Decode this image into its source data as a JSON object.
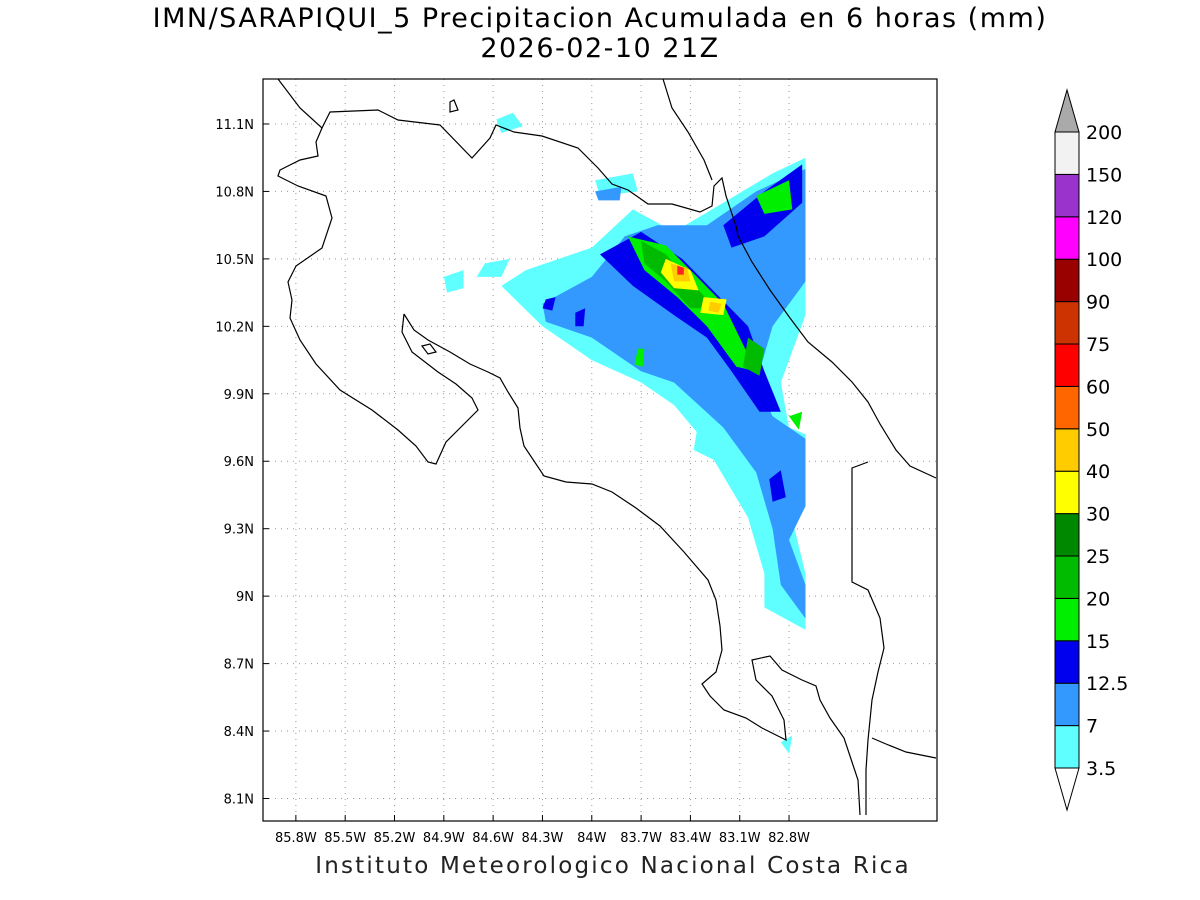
{
  "header": {
    "title_line1": "IMN/SARAPIQUI_5 Precipitacion Acumulada en 6 horas (mm)",
    "title_line2": "2026-02-10 21Z"
  },
  "footer": {
    "credit": "Instituto Meteorologico Nacional Costa Rica"
  },
  "map": {
    "lon_range": [
      -86.0,
      -81.9
    ],
    "lat_range": [
      8.0,
      11.3
    ],
    "x_ticks": [
      {
        "lon": -85.8,
        "label": "85.8W"
      },
      {
        "lon": -85.5,
        "label": "85.5W"
      },
      {
        "lon": -85.2,
        "label": "85.2W"
      },
      {
        "lon": -84.9,
        "label": "84.9W"
      },
      {
        "lon": -84.6,
        "label": "84.6W"
      },
      {
        "lon": -84.3,
        "label": "84.3W"
      },
      {
        "lon": -84.0,
        "label": "84W"
      },
      {
        "lon": -83.7,
        "label": "83.7W"
      },
      {
        "lon": -83.4,
        "label": "83.4W"
      },
      {
        "lon": -83.1,
        "label": "83.1W"
      },
      {
        "lon": -82.8,
        "label": "82.8W"
      }
    ],
    "y_ticks": [
      {
        "lat": 11.1,
        "label": "11.1N"
      },
      {
        "lat": 10.8,
        "label": "10.8N"
      },
      {
        "lat": 10.5,
        "label": "10.5N"
      },
      {
        "lat": 10.2,
        "label": "10.2N"
      },
      {
        "lat": 9.9,
        "label": "9.9N"
      },
      {
        "lat": 9.6,
        "label": "9.6N"
      },
      {
        "lat": 9.3,
        "label": "9.3N"
      },
      {
        "lat": 9.0,
        "label": "9N"
      },
      {
        "lat": 8.7,
        "label": "8.7N"
      },
      {
        "lat": 8.4,
        "label": "8.4N"
      },
      {
        "lat": 8.1,
        "label": "8.1N"
      }
    ],
    "grid": "dotted",
    "precip_bands": [
      {
        "level": 3.5,
        "color": "#5fffff",
        "polys": [
          [
            [
              -84.4,
              10.45
            ],
            [
              -84.0,
              10.55
            ],
            [
              -83.75,
              10.72
            ],
            [
              -83.5,
              10.62
            ],
            [
              -83.2,
              10.75
            ],
            [
              -82.9,
              10.88
            ],
            [
              -82.7,
              10.95
            ],
            [
              -82.7,
              10.25
            ],
            [
              -82.85,
              9.95
            ],
            [
              -82.8,
              9.75
            ],
            [
              -82.7,
              9.72
            ],
            [
              -82.7,
              9.5
            ],
            [
              -82.8,
              9.4
            ],
            [
              -82.7,
              9.1
            ],
            [
              -82.7,
              8.85
            ],
            [
              -82.95,
              8.95
            ],
            [
              -82.95,
              9.1
            ],
            [
              -83.05,
              9.35
            ],
            [
              -83.35,
              9.72
            ],
            [
              -83.5,
              9.85
            ],
            [
              -83.7,
              9.95
            ],
            [
              -84.0,
              10.05
            ],
            [
              -84.3,
              10.2
            ],
            [
              -84.55,
              10.38
            ]
          ],
          [
            [
              -84.65,
              10.48
            ],
            [
              -84.5,
              10.5
            ],
            [
              -84.55,
              10.42
            ],
            [
              -84.7,
              10.42
            ]
          ],
          [
            [
              -84.9,
              10.42
            ],
            [
              -84.78,
              10.45
            ],
            [
              -84.78,
              10.37
            ],
            [
              -84.88,
              10.35
            ]
          ],
          [
            [
              -84.58,
              11.12
            ],
            [
              -84.48,
              11.15
            ],
            [
              -84.42,
              11.09
            ],
            [
              -84.55,
              11.06
            ]
          ],
          [
            [
              -83.98,
              10.85
            ],
            [
              -83.75,
              10.88
            ],
            [
              -83.72,
              10.8
            ],
            [
              -83.95,
              10.78
            ]
          ],
          [
            [
              -83.38,
              9.65
            ],
            [
              -83.1,
              9.55
            ],
            [
              -82.95,
              9.7
            ],
            [
              -83.1,
              9.8
            ],
            [
              -83.35,
              9.78
            ]
          ],
          [
            [
              -82.85,
              8.35
            ],
            [
              -82.78,
              8.38
            ],
            [
              -82.8,
              8.3
            ]
          ]
        ]
      },
      {
        "level": 7,
        "color": "#3399ff",
        "polys": [
          [
            [
              -84.3,
              10.3
            ],
            [
              -84.0,
              10.42
            ],
            [
              -83.8,
              10.6
            ],
            [
              -83.6,
              10.65
            ],
            [
              -83.3,
              10.65
            ],
            [
              -83.0,
              10.8
            ],
            [
              -82.7,
              10.9
            ],
            [
              -82.7,
              10.4
            ],
            [
              -82.9,
              10.2
            ],
            [
              -83.0,
              9.95
            ],
            [
              -82.9,
              9.8
            ],
            [
              -82.7,
              9.7
            ],
            [
              -82.7,
              9.4
            ],
            [
              -82.8,
              9.25
            ],
            [
              -82.7,
              9.05
            ],
            [
              -82.7,
              8.9
            ],
            [
              -82.85,
              9.05
            ],
            [
              -82.9,
              9.3
            ],
            [
              -83.0,
              9.55
            ],
            [
              -83.2,
              9.75
            ],
            [
              -83.5,
              9.95
            ],
            [
              -83.7,
              10.0
            ],
            [
              -84.0,
              10.15
            ],
            [
              -84.28,
              10.22
            ]
          ],
          [
            [
              -83.98,
              10.8
            ],
            [
              -83.82,
              10.82
            ],
            [
              -83.83,
              10.76
            ],
            [
              -83.96,
              10.76
            ]
          ]
        ]
      },
      {
        "level": 12.5,
        "color": "#0000ee",
        "polys": [
          [
            [
              -83.95,
              10.52
            ],
            [
              -83.7,
              10.62
            ],
            [
              -83.45,
              10.5
            ],
            [
              -83.25,
              10.35
            ],
            [
              -83.05,
              10.2
            ],
            [
              -82.95,
              10.0
            ],
            [
              -82.85,
              9.82
            ],
            [
              -82.98,
              9.82
            ],
            [
              -83.15,
              10.0
            ],
            [
              -83.3,
              10.15
            ],
            [
              -83.5,
              10.25
            ],
            [
              -83.75,
              10.38
            ]
          ],
          [
            [
              -83.2,
              10.65
            ],
            [
              -82.95,
              10.8
            ],
            [
              -82.72,
              10.92
            ],
            [
              -82.72,
              10.75
            ],
            [
              -82.95,
              10.6
            ],
            [
              -83.15,
              10.55
            ]
          ],
          [
            [
              -82.92,
              9.52
            ],
            [
              -82.85,
              9.56
            ],
            [
              -82.82,
              9.44
            ],
            [
              -82.9,
              9.42
            ]
          ],
          [
            [
              -84.28,
              10.32
            ],
            [
              -84.22,
              10.33
            ],
            [
              -84.24,
              10.27
            ],
            [
              -84.3,
              10.28
            ]
          ],
          [
            [
              -84.1,
              10.26
            ],
            [
              -84.04,
              10.28
            ],
            [
              -84.05,
              10.2
            ],
            [
              -84.1,
              10.2
            ]
          ]
        ]
      },
      {
        "level": 15,
        "color": "#00ee00",
        "polys": [
          [
            [
              -83.78,
              10.6
            ],
            [
              -83.55,
              10.56
            ],
            [
              -83.4,
              10.45
            ],
            [
              -83.2,
              10.3
            ],
            [
              -83.1,
              10.15
            ],
            [
              -83.0,
              10.0
            ],
            [
              -83.12,
              10.02
            ],
            [
              -83.3,
              10.2
            ],
            [
              -83.48,
              10.33
            ],
            [
              -83.68,
              10.45
            ]
          ],
          [
            [
              -83.0,
              10.78
            ],
            [
              -82.8,
              10.85
            ],
            [
              -82.78,
              10.72
            ],
            [
              -82.95,
              10.7
            ]
          ],
          [
            [
              -82.8,
              9.8
            ],
            [
              -82.72,
              9.82
            ],
            [
              -82.74,
              9.74
            ]
          ],
          [
            [
              -83.72,
              10.1
            ],
            [
              -83.68,
              10.1
            ],
            [
              -83.69,
              10.02
            ],
            [
              -83.74,
              10.03
            ]
          ]
        ]
      },
      {
        "level": 20,
        "color": "#00bb00",
        "polys": [
          [
            [
              -83.7,
              10.58
            ],
            [
              -83.55,
              10.52
            ],
            [
              -83.4,
              10.4
            ],
            [
              -83.25,
              10.28
            ],
            [
              -83.4,
              10.28
            ],
            [
              -83.55,
              10.4
            ],
            [
              -83.68,
              10.48
            ]
          ],
          [
            [
              -83.05,
              10.15
            ],
            [
              -82.95,
              10.1
            ],
            [
              -82.98,
              9.98
            ],
            [
              -83.08,
              10.02
            ]
          ]
        ]
      },
      {
        "level": 30,
        "color": "#ffff00",
        "polys": [
          [
            [
              -83.55,
              10.5
            ],
            [
              -83.4,
              10.45
            ],
            [
              -83.35,
              10.36
            ],
            [
              -83.5,
              10.37
            ],
            [
              -83.58,
              10.44
            ]
          ],
          [
            [
              -83.32,
              10.33
            ],
            [
              -83.18,
              10.32
            ],
            [
              -83.2,
              10.25
            ],
            [
              -83.34,
              10.26
            ]
          ]
        ]
      },
      {
        "level": 40,
        "color": "#ffcc00",
        "polys": [
          [
            [
              -83.52,
              10.48
            ],
            [
              -83.42,
              10.46
            ],
            [
              -83.4,
              10.4
            ],
            [
              -83.5,
              10.4
            ]
          ],
          [
            [
              -83.28,
              10.31
            ],
            [
              -83.21,
              10.3
            ],
            [
              -83.23,
              10.26
            ],
            [
              -83.29,
              10.27
            ]
          ]
        ]
      },
      {
        "level": 60,
        "color": "#ff2222",
        "polys": [
          [
            [
              -83.48,
              10.47
            ],
            [
              -83.44,
              10.46
            ],
            [
              -83.44,
              10.43
            ],
            [
              -83.48,
              10.43
            ]
          ]
        ]
      }
    ]
  },
  "legend": {
    "labels": [
      "3.5",
      "7",
      "12.5",
      "15",
      "20",
      "25",
      "30",
      "40",
      "50",
      "60",
      "75",
      "90",
      "100",
      "120",
      "150",
      "200"
    ],
    "colors": [
      "#ffffff",
      "#5fffff",
      "#3399ff",
      "#0000ee",
      "#00ee00",
      "#00bb00",
      "#008800",
      "#ffff00",
      "#ffcc00",
      "#ff6600",
      "#ff0000",
      "#cc3300",
      "#990000",
      "#ff00ff",
      "#9933cc",
      "#f2f2f2",
      "#aaaaaa"
    ]
  }
}
